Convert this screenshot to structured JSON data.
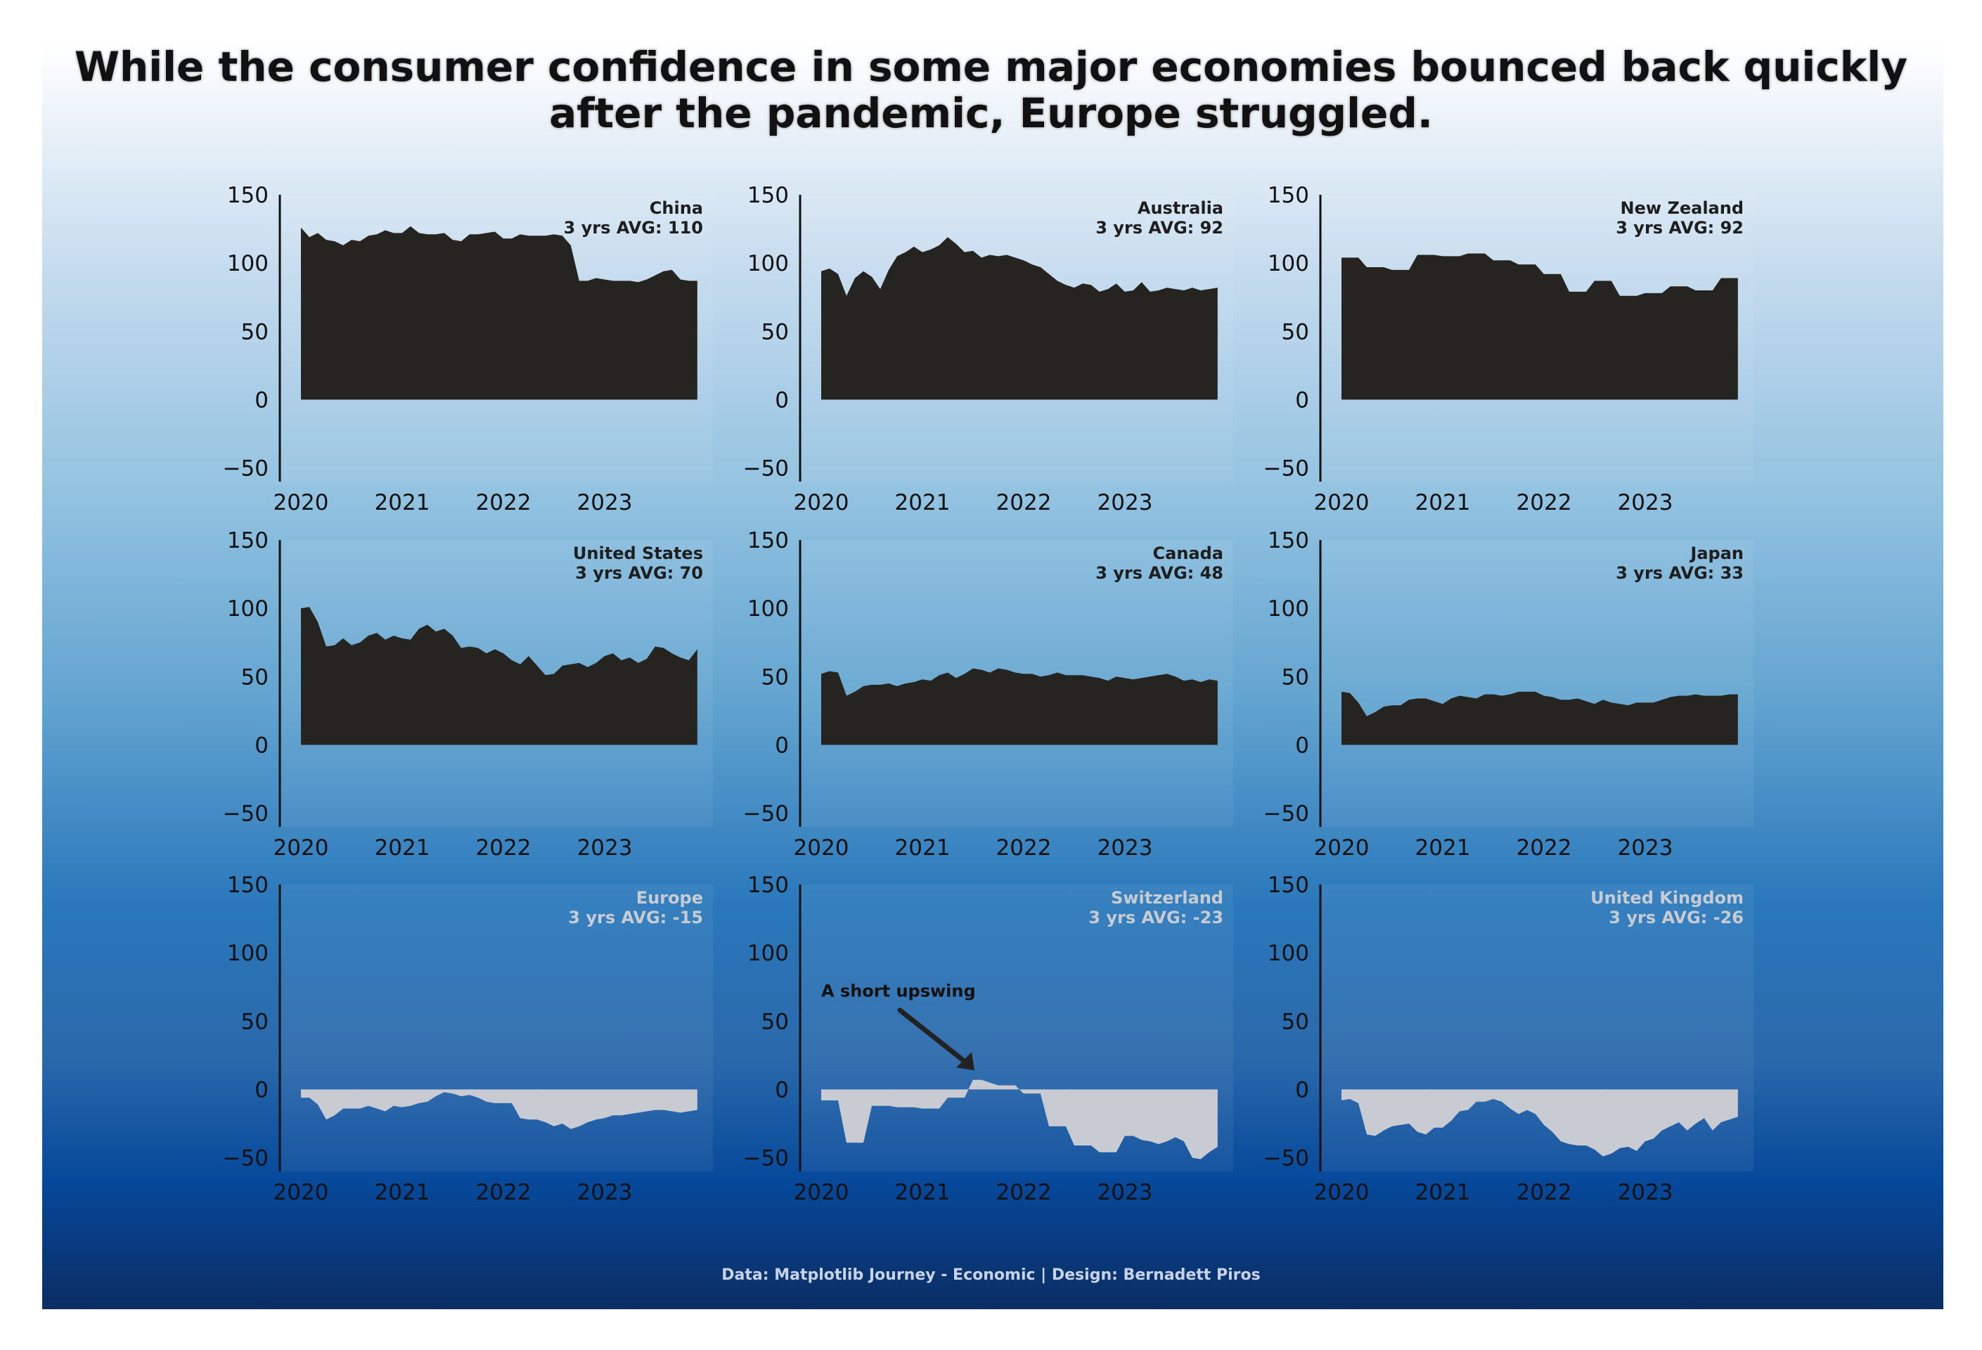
{
  "title": {
    "line1": "While the consumer confidence in some major economies bounced back quickly",
    "line2": "after the pandemic, Europe struggled."
  },
  "footer": "Data: Matplotlib Journey - Economic | Design: Bernadett Piros",
  "colors": {
    "dark_fill": "#252420",
    "light_fill": "#c8ccd2",
    "light_label": "#c8ccd2",
    "dark_label": "#1e1e1e",
    "axis": "#111111"
  },
  "chart_data": [
    {
      "type": "area",
      "name": "China",
      "avg_label": "3 yrs AVG: 110",
      "fill": "dark",
      "ylim": [
        -60,
        150
      ],
      "yticks": [
        -50,
        0,
        50,
        100,
        150
      ],
      "xlim": [
        2020,
        2024
      ],
      "xticks": [
        2020,
        2021,
        2022,
        2023
      ],
      "x_start": 2020.0,
      "x_step": 0.0833,
      "values": [
        126,
        119,
        122,
        117,
        116,
        113,
        117,
        116,
        120,
        121,
        124,
        122,
        122,
        127,
        122,
        121,
        121,
        122,
        117,
        116,
        121,
        121,
        122,
        123,
        118,
        118,
        121,
        120,
        120,
        120,
        121,
        120,
        113,
        87,
        87,
        89,
        88,
        87,
        87,
        87,
        86,
        88,
        91,
        94,
        95,
        88,
        87,
        87
      ]
    },
    {
      "type": "area",
      "name": "Australia",
      "avg_label": "3 yrs AVG: 92",
      "fill": "dark",
      "ylim": [
        -60,
        150
      ],
      "yticks": [
        -50,
        0,
        50,
        100,
        150
      ],
      "xlim": [
        2020,
        2024
      ],
      "xticks": [
        2020,
        2021,
        2022,
        2023
      ],
      "x_start": 2020.0,
      "x_step": 0.0833,
      "values": [
        94,
        96,
        92,
        76,
        89,
        94,
        90,
        81,
        95,
        105,
        108,
        112,
        108,
        110,
        113,
        119,
        114,
        108,
        109,
        104,
        106,
        105,
        106,
        104,
        102,
        99,
        97,
        92,
        87,
        84,
        82,
        85,
        84,
        79,
        81,
        85,
        79,
        80,
        86,
        79,
        80,
        82,
        81,
        80,
        82,
        80,
        81,
        82
      ]
    },
    {
      "type": "area",
      "name": "New Zealand",
      "avg_label": "3 yrs AVG: 92",
      "fill": "dark",
      "ylim": [
        -60,
        150
      ],
      "yticks": [
        -50,
        0,
        50,
        100,
        150
      ],
      "xlim": [
        2020,
        2024
      ],
      "xticks": [
        2020,
        2021,
        2022,
        2023
      ],
      "x_start": 2020.0,
      "x_step": 0.0833,
      "values": [
        104,
        104,
        104,
        97,
        97,
        97,
        95,
        95,
        95,
        106,
        106,
        106,
        105,
        105,
        105,
        107,
        107,
        107,
        102,
        102,
        102,
        99,
        99,
        99,
        92,
        92,
        92,
        79,
        79,
        79,
        87,
        87,
        87,
        76,
        76,
        76,
        78,
        78,
        78,
        83,
        83,
        83,
        80,
        80,
        80,
        89,
        89,
        89
      ]
    },
    {
      "type": "area",
      "name": "United States",
      "avg_label": "3 yrs AVG: 70",
      "fill": "dark",
      "ylim": [
        -60,
        150
      ],
      "yticks": [
        -50,
        0,
        50,
        100,
        150
      ],
      "xlim": [
        2020,
        2024
      ],
      "xticks": [
        2020,
        2021,
        2022,
        2023
      ],
      "x_start": 2020.0,
      "x_step": 0.0833,
      "values": [
        100,
        101,
        90,
        72,
        73,
        78,
        73,
        75,
        80,
        82,
        77,
        80,
        78,
        77,
        85,
        88,
        83,
        85,
        80,
        71,
        72,
        71,
        67,
        70,
        67,
        62,
        59,
        65,
        58,
        51,
        52,
        58,
        59,
        60,
        57,
        60,
        65,
        67,
        62,
        64,
        60,
        63,
        72,
        71,
        67,
        64,
        62,
        70
      ]
    },
    {
      "type": "area",
      "name": "Canada",
      "avg_label": "3 yrs AVG: 48",
      "fill": "dark",
      "ylim": [
        -60,
        150
      ],
      "yticks": [
        -50,
        0,
        50,
        100,
        150
      ],
      "xlim": [
        2020,
        2024
      ],
      "xticks": [
        2020,
        2021,
        2022,
        2023
      ],
      "x_start": 2020.0,
      "x_step": 0.0833,
      "values": [
        52,
        54,
        53,
        36,
        39,
        43,
        44,
        44,
        45,
        43,
        45,
        46,
        48,
        47,
        51,
        53,
        49,
        52,
        56,
        55,
        53,
        56,
        55,
        53,
        52,
        52,
        50,
        51,
        53,
        51,
        51,
        51,
        50,
        49,
        47,
        50,
        49,
        48,
        49,
        50,
        51,
        52,
        50,
        47,
        48,
        46,
        48,
        47
      ]
    },
    {
      "type": "area",
      "name": "Japan",
      "avg_label": "3 yrs AVG: 33",
      "fill": "dark",
      "ylim": [
        -60,
        150
      ],
      "yticks": [
        -50,
        0,
        50,
        100,
        150
      ],
      "xlim": [
        2020,
        2024
      ],
      "xticks": [
        2020,
        2021,
        2022,
        2023
      ],
      "x_start": 2020.0,
      "x_step": 0.0833,
      "values": [
        39,
        38,
        31,
        21,
        24,
        28,
        29,
        29,
        33,
        34,
        34,
        32,
        30,
        34,
        36,
        35,
        34,
        37,
        37,
        36,
        37,
        39,
        39,
        39,
        36,
        35,
        33,
        33,
        34,
        32,
        30,
        33,
        31,
        30,
        29,
        31,
        31,
        31,
        33,
        35,
        36,
        36,
        37,
        36,
        36,
        36,
        37,
        37
      ]
    },
    {
      "type": "area",
      "name": "Europe",
      "avg_label": "3 yrs AVG: -15",
      "fill": "light",
      "ylim": [
        -60,
        150
      ],
      "yticks": [
        -50,
        0,
        50,
        100,
        150
      ],
      "xlim": [
        2020,
        2024
      ],
      "xticks": [
        2020,
        2021,
        2022,
        2023
      ],
      "x_start": 2020.0,
      "x_step": 0.0833,
      "values": [
        -6,
        -6,
        -11,
        -22,
        -19,
        -14,
        -14,
        -14,
        -12,
        -14,
        -16,
        -12,
        -13,
        -12,
        -10,
        -9,
        -5,
        -2,
        -3,
        -5,
        -4,
        -6,
        -9,
        -10,
        -10,
        -10,
        -21,
        -22,
        -22,
        -24,
        -27,
        -25,
        -29,
        -27,
        -24,
        -22,
        -21,
        -19,
        -19,
        -18,
        -17,
        -16,
        -15,
        -15,
        -16,
        -17,
        -16,
        -15
      ]
    },
    {
      "type": "area",
      "name": "Switzerland",
      "avg_label": "3 yrs AVG: -23",
      "fill": "light",
      "ylim": [
        -60,
        150
      ],
      "yticks": [
        -50,
        0,
        50,
        100,
        150
      ],
      "xlim": [
        2020,
        2024
      ],
      "xticks": [
        2020,
        2021,
        2022,
        2023
      ],
      "x_start": 2020.0,
      "x_step": 0.0833,
      "values": [
        -8,
        -8,
        -8,
        -39,
        -39,
        -39,
        -12,
        -12,
        -12,
        -13,
        -13,
        -13,
        -14,
        -14,
        -14,
        -6,
        -6,
        -6,
        7,
        7,
        5,
        3,
        3,
        3,
        -3,
        -3,
        -3,
        -27,
        -27,
        -27,
        -41,
        -41,
        -41,
        -46,
        -46,
        -46,
        -34,
        -34,
        -37,
        -38,
        -40,
        -38,
        -35,
        -38,
        -50,
        -51,
        -46,
        -42
      ],
      "annotation": {
        "text": "A short upswing",
        "target_x": 2021.5,
        "target_y": 15
      }
    },
    {
      "type": "area",
      "name": "United Kingdom",
      "avg_label": "3 yrs AVG: -26",
      "fill": "light",
      "ylim": [
        -60,
        150
      ],
      "yticks": [
        -50,
        0,
        50,
        100,
        150
      ],
      "xlim": [
        2020,
        2024
      ],
      "xticks": [
        2020,
        2021,
        2022,
        2023
      ],
      "x_start": 2020.0,
      "x_step": 0.0833,
      "values": [
        -8,
        -7,
        -10,
        -33,
        -34,
        -30,
        -27,
        -26,
        -25,
        -31,
        -33,
        -28,
        -28,
        -23,
        -16,
        -15,
        -9,
        -9,
        -7,
        -9,
        -14,
        -18,
        -15,
        -18,
        -26,
        -31,
        -38,
        -40,
        -41,
        -41,
        -44,
        -49,
        -47,
        -43,
        -42,
        -45,
        -38,
        -36,
        -30,
        -27,
        -24,
        -30,
        -25,
        -21,
        -30,
        -24,
        -22,
        -20
      ]
    }
  ]
}
